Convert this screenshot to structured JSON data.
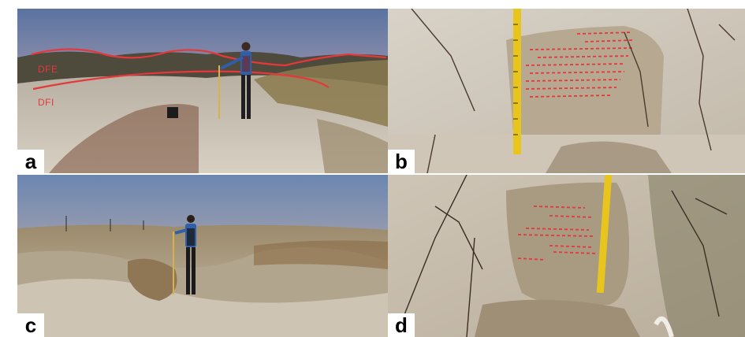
{
  "panels": [
    {
      "label": "a",
      "overlay_labels": [
        "DFE",
        "DFI"
      ]
    },
    {
      "label": "b"
    },
    {
      "label": "c"
    },
    {
      "label": "d"
    }
  ],
  "colors": {
    "annotation_red": "#e5383b",
    "tape_yellow": "#e8c51c",
    "sand": "#c9bfb0",
    "sky_top": "#5d78a3",
    "sky_horizon": "#e6b59a"
  }
}
